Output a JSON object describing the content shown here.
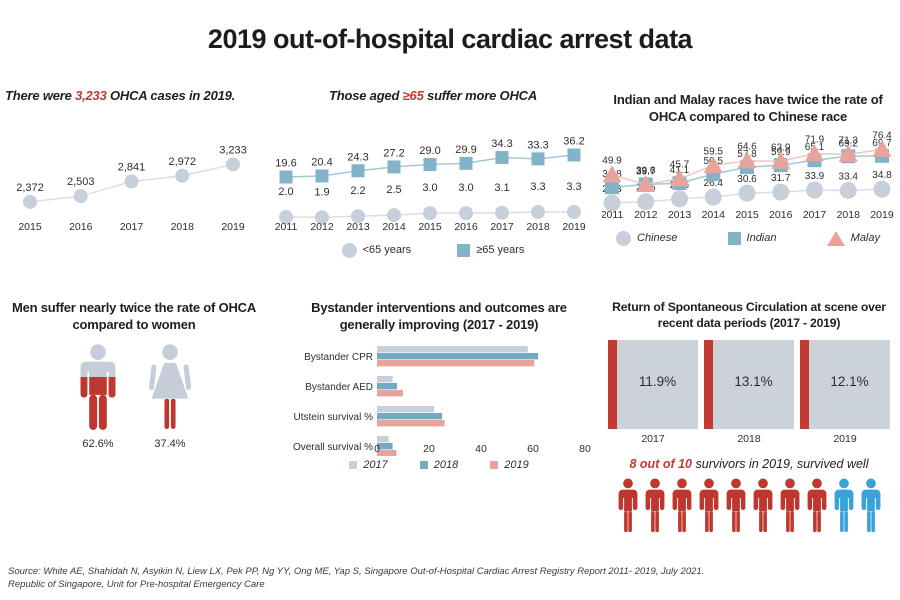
{
  "title": "2019 out-of-hospital cardiac arrest data",
  "colors": {
    "ink": "#242424",
    "accent_red": "#c23a31",
    "series_gray": "#c7cfda",
    "series_blue": "#83b3c7",
    "series_salmon": "#e7a49d",
    "line_gray": "#d9dee6",
    "line_blue": "#a6c7d6",
    "line_salmon": "#efc6c0",
    "bar_2017": "#c7cfda",
    "bar_2018": "#74a9c2",
    "bar_2019": "#e7a49d",
    "box_gray": "#ccd2da",
    "figure_gray": "#c5cdd8",
    "figure_red": "#bf372e",
    "survivor_blue": "#38a3d8",
    "label_ink": "#2e2e2e"
  },
  "chart_data": [
    {
      "id": "cases",
      "type": "line",
      "title": "There were 3,233 OHCA cases in 2019.",
      "heading": {
        "pre": "There were ",
        "highlight": "3,233",
        "post": " OHCA cases in 2019."
      },
      "categories": [
        "2015",
        "2016",
        "2017",
        "2018",
        "2019"
      ],
      "series": [
        {
          "name": "OHCA cases",
          "marker": "circle",
          "values": [
            2372,
            2503,
            2841,
            2972,
            3233
          ]
        }
      ],
      "ylim": [
        2300,
        3450
      ],
      "value_labels": true
    },
    {
      "id": "age",
      "type": "line",
      "title": "Those aged ≥65 suffer more OHCA",
      "heading": {
        "pre": "Those aged ",
        "highlight": "≥65",
        "post": " suffer more OHCA"
      },
      "categories": [
        "2011",
        "2012",
        "2013",
        "2014",
        "2015",
        "2016",
        "2017",
        "2018",
        "2019"
      ],
      "series": [
        {
          "name": "<65 years",
          "marker": "circle",
          "values": [
            2.0,
            1.9,
            2.2,
            2.5,
            3.0,
            3.0,
            3.1,
            3.3,
            3.3
          ]
        },
        {
          "name": "≥65 years",
          "marker": "square",
          "values": [
            19.6,
            20.4,
            24.3,
            27.2,
            29.0,
            29.9,
            34.3,
            33.3,
            36.2
          ]
        }
      ],
      "ylim": [
        0,
        40
      ],
      "value_labels": true,
      "legend_position": "bottom"
    },
    {
      "id": "race",
      "type": "line",
      "title": "Indian and Malay races have twice the rate of OHCA compared to Chinese race",
      "heading": {
        "text": "Indian and Malay races have twice the rate of OHCA compared to Chinese race"
      },
      "categories": [
        "2011",
        "2012",
        "2013",
        "2014",
        "2015",
        "2016",
        "2017",
        "2018",
        "2019"
      ],
      "series": [
        {
          "name": "Chinese",
          "marker": "circle",
          "values": [
            20.3,
            21.6,
            24.6,
            26.4,
            30.6,
            31.7,
            33.9,
            33.4,
            34.8
          ]
        },
        {
          "name": "Indian",
          "marker": "square",
          "values": [
            36.8,
            39.7,
            41.1,
            50.5,
            57.8,
            59.9,
            65.1,
            69.2,
            69.7
          ]
        },
        {
          "name": "Malay",
          "marker": "triangle",
          "values": [
            49.9,
            39.6,
            45.7,
            59.5,
            64.6,
            63.9,
            71.9,
            71.3,
            76.4
          ]
        }
      ],
      "ylim": [
        15,
        80
      ],
      "value_labels": true,
      "legend_position": "bottom"
    },
    {
      "id": "gender",
      "type": "pictogram",
      "title": "Men suffer nearly twice the rate of OHCA compared to women",
      "heading": {
        "text": "Men suffer nearly twice the rate of OHCA compared to women"
      },
      "values": [
        {
          "figure": "male",
          "label": "62.6%",
          "pct": 62.6
        },
        {
          "figure": "female",
          "label": "37.4%",
          "pct": 37.4
        }
      ]
    },
    {
      "id": "bystander",
      "type": "bar",
      "title": "Bystander interventions and outcomes are generally improving (2017 - 2019)",
      "heading": {
        "text": "Bystander interventions and outcomes are generally improving (2017 - 2019)"
      },
      "categories": [
        "Bystander CPR",
        "Bystander AED",
        "Utstein survival %",
        "Overall survival %"
      ],
      "series": [
        {
          "name": "2017",
          "values": [
            58,
            6,
            22,
            4.5
          ]
        },
        {
          "name": "2018",
          "values": [
            62,
            7.7,
            25,
            6
          ]
        },
        {
          "name": "2019",
          "values": [
            60.5,
            10,
            26,
            7.5
          ]
        }
      ],
      "xlim": [
        0,
        80
      ],
      "xticks": [
        0,
        20,
        40,
        60,
        80
      ],
      "legend_position": "bottom"
    },
    {
      "id": "rosc",
      "type": "table",
      "title": "Return of Spontaneous Circulation at scene over recent data periods (2017 - 2019)",
      "heading": {
        "text": "Return of Spontaneous Circulation at scene over recent data periods (2017 - 2019)"
      },
      "categories": [
        "2017",
        "2018",
        "2019"
      ],
      "values": [
        "11.9%",
        "13.1%",
        "12.1%"
      ],
      "note": {
        "highlight": "8 out of 10",
        "rest": " survivors in 2019, survived well"
      },
      "survivors": {
        "total": 10,
        "survived_well": 8
      }
    }
  ],
  "source": {
    "line1": "Source: White AE, Shahidah N, Asyikin N, Liew LX, Pek PP, Ng YY, Ong ME, Yap S, Singapore Out-of-Hospital Cardiac Arrest Registry Report 2011- 2019, July 2021.",
    "line2": "Republic of Singapore, Unit for Pre-hospital Emergency Care"
  }
}
